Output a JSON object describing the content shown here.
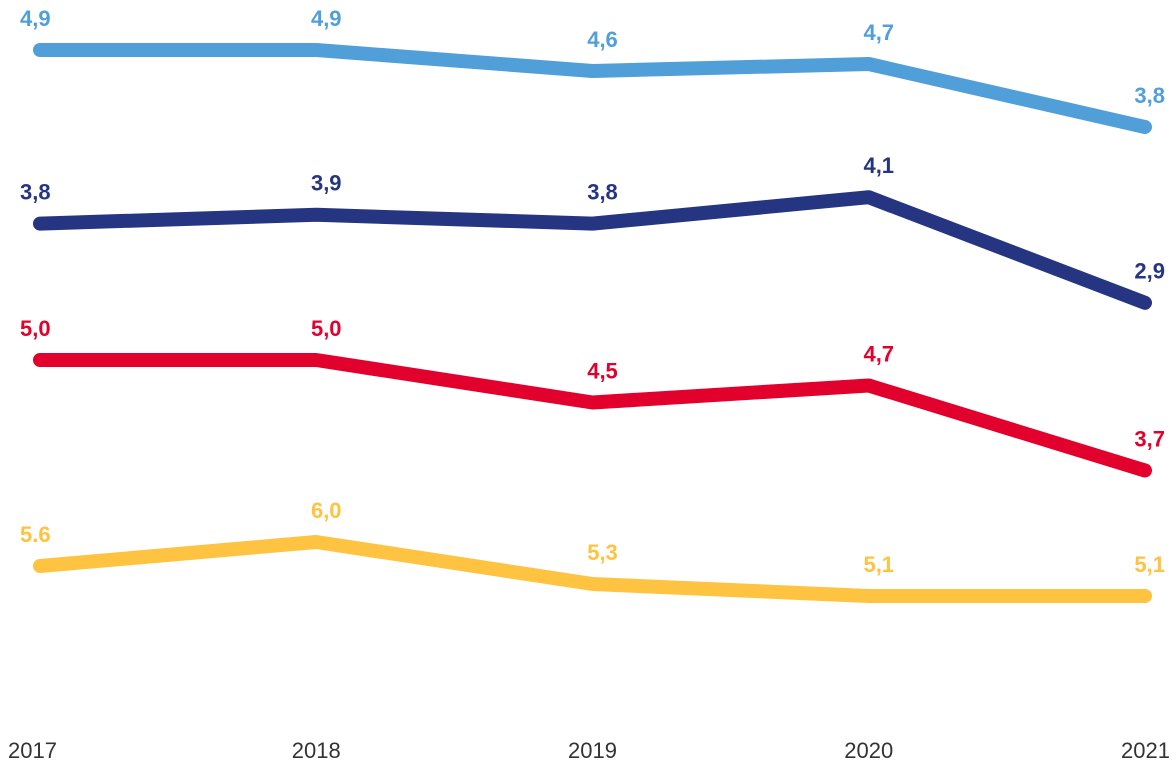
{
  "chart_data": {
    "type": "line",
    "categories": [
      "2017",
      "2018",
      "2019",
      "2020",
      "2021"
    ],
    "series": [
      {
        "color": "#519fd9",
        "values": [
          4.9,
          4.9,
          4.6,
          4.7,
          3.8
        ],
        "value_labels": [
          "4,9",
          "4,9",
          "4,6",
          "4,7",
          "3,8"
        ],
        "ylim": [
          3.5,
          5.2
        ]
      },
      {
        "color": "#253581",
        "values": [
          3.8,
          3.9,
          3.8,
          4.1,
          2.9
        ],
        "value_labels": [
          "3,8",
          "3,9",
          "3,8",
          "4,1",
          "2,9"
        ],
        "ylim": [
          2.5,
          4.5
        ]
      },
      {
        "color": "#e2002c",
        "values": [
          5.0,
          5.0,
          4.5,
          4.7,
          3.7
        ],
        "value_labels": [
          "5,0",
          "5,0",
          "4,5",
          "4,7",
          "3,7"
        ],
        "ylim": [
          3.5,
          5.2
        ]
      },
      {
        "color": "#fec340",
        "values": [
          5.6,
          6.0,
          5.3,
          5.1,
          5.1
        ],
        "value_labels": [
          "5.6",
          "6,0",
          "5,3",
          "5,1",
          "5,1"
        ],
        "ylim": [
          4.8,
          6.2
        ]
      }
    ]
  }
}
